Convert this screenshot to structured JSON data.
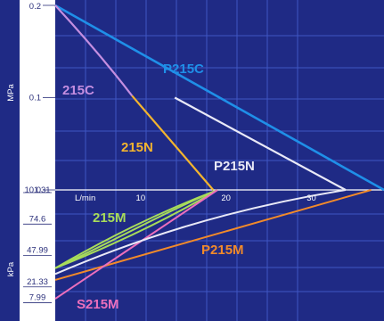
{
  "chart_data": {
    "type": "line",
    "x_unit": "L/min",
    "x_ticks": [
      10,
      20,
      30
    ],
    "x_range": [
      0,
      38.5
    ],
    "upper_unit": "MPa",
    "upper_ticks": [
      "0.2",
      "0.1",
      "0"
    ],
    "upper_range": [
      0,
      0.2
    ],
    "lower_unit": "kPa",
    "lower_ticks": [
      "101.31",
      "74.6",
      "47.99",
      "21.33",
      "7.99"
    ],
    "lower_tick_values": [
      101.31,
      74.6,
      47.99,
      21.33,
      7.99
    ],
    "lower_range": [
      0,
      101.31
    ],
    "colors": {
      "background": "#1f2a85",
      "grid": "#3f56c4",
      "left_panel": "#ffffff",
      "P215C": "#1f8fe8",
      "215C": "#c48ee0",
      "215N": "#f3b42e",
      "P215N": "#e9e9f7",
      "215M": "#a8dc5a",
      "P215M": "#f28a2a",
      "S215M": "#ec6fbc"
    },
    "pressure_series": [
      {
        "name": "P215C",
        "label": "P215C",
        "points": [
          [
            0,
            0.2
          ],
          [
            38.5,
            0
          ]
        ]
      },
      {
        "name": "215C",
        "label": "215C",
        "points": [
          [
            0,
            0.2
          ],
          [
            5,
            0.15
          ],
          [
            9,
            0.102
          ]
        ]
      },
      {
        "name": "215N",
        "label": "215N",
        "points": [
          [
            9,
            0.102
          ],
          [
            18.5,
            0
          ]
        ]
      },
      {
        "name": "P215N",
        "label": "P215N",
        "points": [
          [
            14,
            0.1
          ],
          [
            34,
            0
          ]
        ]
      }
    ],
    "vacuum_series": [
      {
        "name": "215M",
        "label": "215M",
        "curves": [
          [
            [
              0,
              35
            ],
            [
              6,
              60
            ],
            [
              12,
              82
            ],
            [
              19,
              101.31
            ]
          ],
          [
            [
              0,
              35
            ],
            [
              8,
              58
            ],
            [
              14,
              80
            ],
            [
              19,
              101.31
            ]
          ],
          [
            [
              0,
              35
            ],
            [
              6,
              55
            ],
            [
              13,
              83
            ],
            [
              19,
              101.31
            ]
          ]
        ]
      },
      {
        "name": "P215M",
        "label": "P215M",
        "curves": [
          [
            [
              0,
              25
            ],
            [
              37,
              101.31
            ]
          ]
        ]
      },
      {
        "name": "S215M",
        "label": "S215M",
        "curves": [
          [
            [
              0,
              9
            ],
            [
              19,
              101.31
            ]
          ]
        ]
      },
      {
        "name": "P215N",
        "label": "",
        "curves": [
          [
            [
              0,
              30
            ],
            [
              9,
              58
            ],
            [
              20,
              85
            ],
            [
              34,
              101.31
            ]
          ]
        ]
      }
    ]
  }
}
